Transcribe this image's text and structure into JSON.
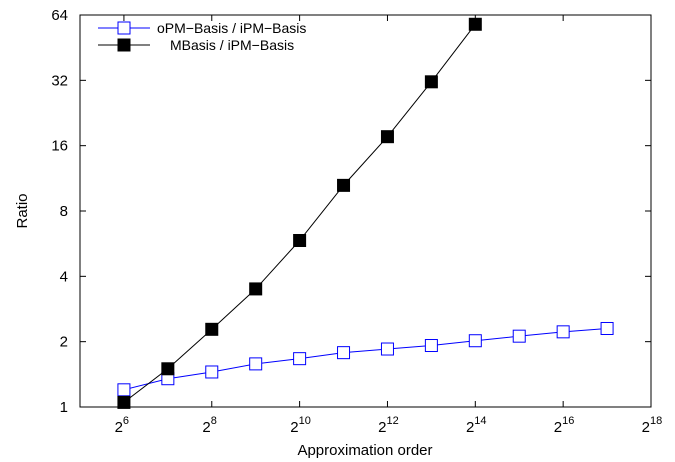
{
  "chart_data": {
    "type": "line",
    "xlabel": "Approximation order",
    "ylabel": "Ratio",
    "x_scale": "log2",
    "y_scale": "log2",
    "xlim": [
      32,
      262144
    ],
    "ylim": [
      1,
      64
    ],
    "x_ticks": [
      {
        "base": "2",
        "exp": "6",
        "value": 64
      },
      {
        "base": "2",
        "exp": "8",
        "value": 256
      },
      {
        "base": "2",
        "exp": "10",
        "value": 1024
      },
      {
        "base": "2",
        "exp": "12",
        "value": 4096
      },
      {
        "base": "2",
        "exp": "14",
        "value": 16384
      },
      {
        "base": "2",
        "exp": "16",
        "value": 65536
      },
      {
        "base": "2",
        "exp": "18",
        "value": 262144
      }
    ],
    "y_ticks": [
      {
        "label": "1",
        "value": 1
      },
      {
        "label": "2",
        "value": 2
      },
      {
        "label": "4",
        "value": 4
      },
      {
        "label": "8",
        "value": 8
      },
      {
        "label": "16",
        "value": 16
      },
      {
        "label": "32",
        "value": 32
      },
      {
        "label": "64",
        "value": 64
      }
    ],
    "grid": false,
    "legend_position": "top-left",
    "series": [
      {
        "name": "oPM−Basis / iPM−Basis",
        "color": "#0000ff",
        "marker": "open-square",
        "points": [
          {
            "x": 64,
            "y": 1.2
          },
          {
            "x": 128,
            "y": 1.35
          },
          {
            "x": 256,
            "y": 1.45
          },
          {
            "x": 512,
            "y": 1.58
          },
          {
            "x": 1024,
            "y": 1.67
          },
          {
            "x": 2048,
            "y": 1.78
          },
          {
            "x": 4096,
            "y": 1.85
          },
          {
            "x": 8192,
            "y": 1.92
          },
          {
            "x": 16384,
            "y": 2.02
          },
          {
            "x": 32768,
            "y": 2.12
          },
          {
            "x": 65536,
            "y": 2.22
          },
          {
            "x": 131072,
            "y": 2.3
          }
        ]
      },
      {
        "name": "MBasis / iPM−Basis",
        "color": "#000000",
        "marker": "filled-square",
        "points": [
          {
            "x": 64,
            "y": 1.05
          },
          {
            "x": 128,
            "y": 1.5
          },
          {
            "x": 256,
            "y": 2.28
          },
          {
            "x": 512,
            "y": 3.5
          },
          {
            "x": 1024,
            "y": 5.85
          },
          {
            "x": 2048,
            "y": 10.5
          },
          {
            "x": 4096,
            "y": 17.6
          },
          {
            "x": 8192,
            "y": 31.5
          },
          {
            "x": 16384,
            "y": 58
          }
        ]
      }
    ]
  }
}
